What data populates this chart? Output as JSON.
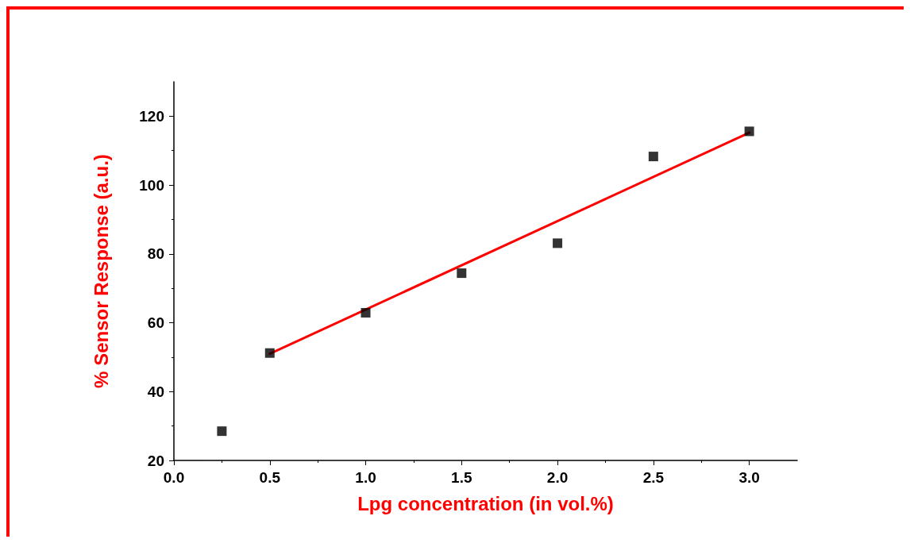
{
  "chart_data": {
    "type": "scatter",
    "xlabel": "Lpg concentration (in vol.%)",
    "ylabel": "% Sensor Response (a.u.)",
    "series": [
      {
        "color": "#000000",
        "marker": "square",
        "x": [
          0.25,
          0.5,
          1.0,
          1.5,
          2.0,
          2.5,
          3.0
        ],
        "values": [
          28.5,
          51.2,
          62.9,
          74.4,
          83.1,
          108.3,
          115.6
        ]
      },
      {
        "type": "line",
        "color": "#ff0000",
        "marker": "none",
        "x": [
          0.5,
          3.0
        ],
        "values": [
          51,
          115.2
        ]
      }
    ],
    "xlim": [
      0,
      3.25
    ],
    "xticks": [
      {
        "value": 0,
        "label": "0.0"
      },
      0.5,
      {
        "value": 1,
        "label": "1.0"
      },
      1.5,
      {
        "value": 2,
        "label": "2.0"
      },
      2.5,
      {
        "value": 3,
        "label": "3.0"
      }
    ],
    "ylim": [
      20,
      130
    ],
    "yticks": [
      20,
      40,
      60,
      80,
      100,
      120
    ],
    "grid": false
  }
}
